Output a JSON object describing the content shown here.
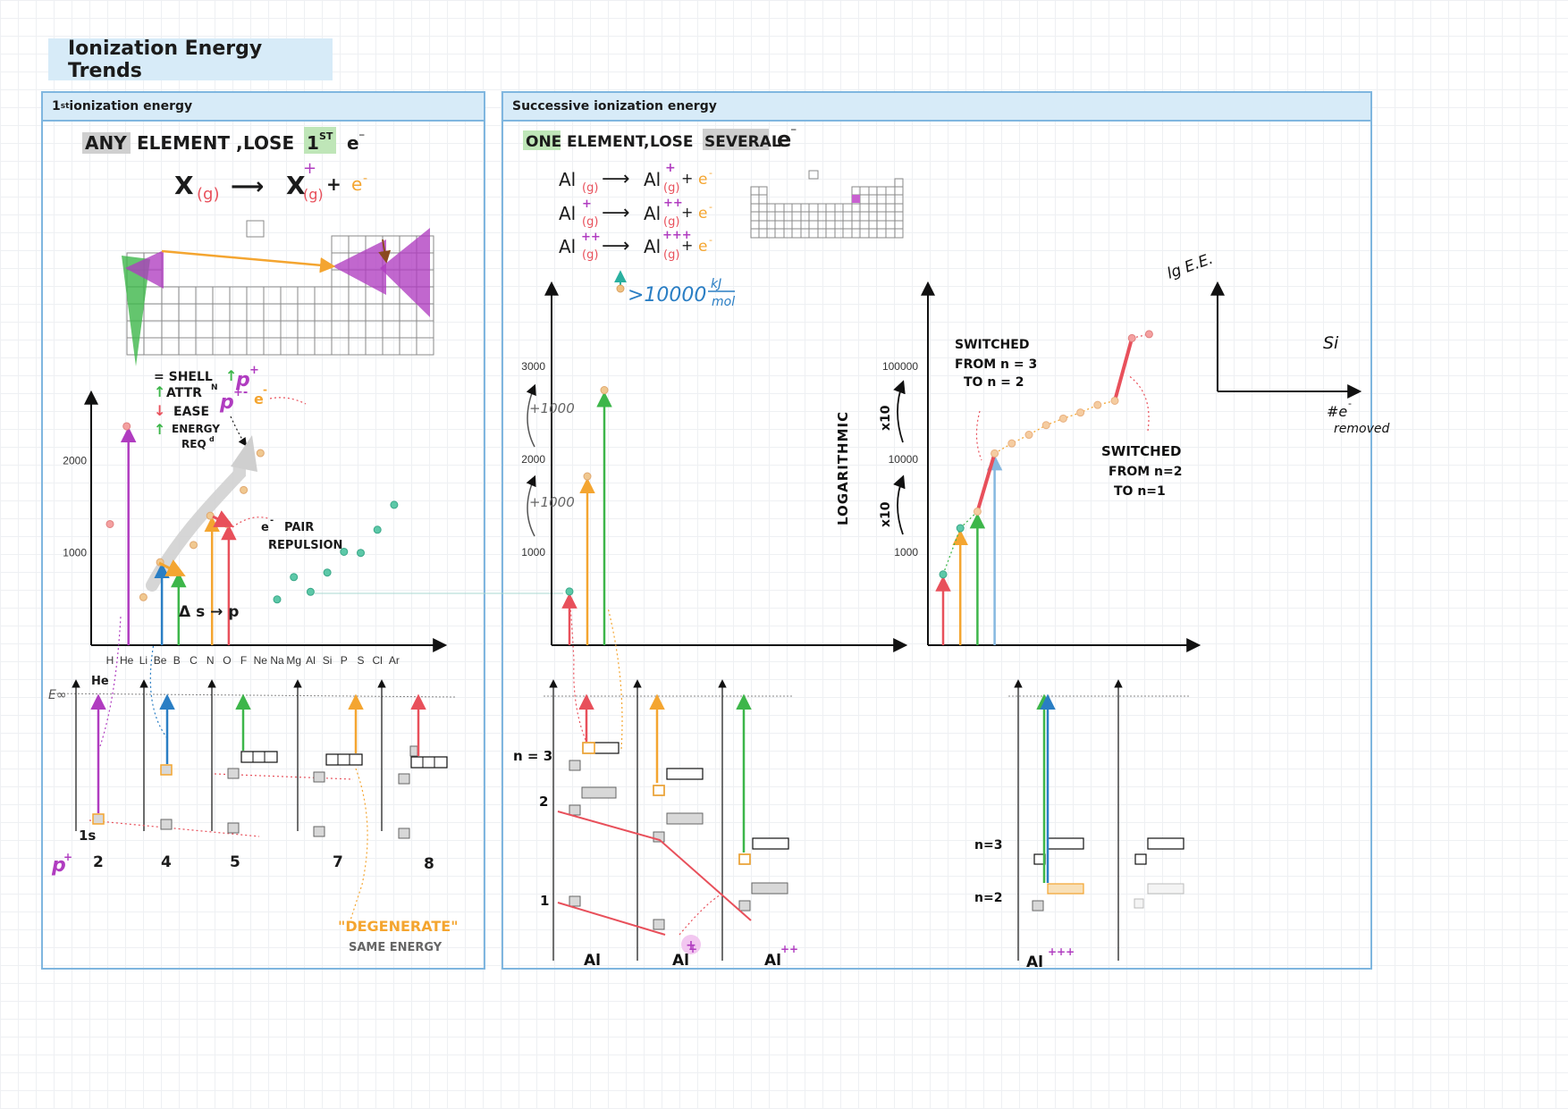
{
  "page_title": "Ionization Energy Trends",
  "panels": {
    "left": {
      "title_prefix": "1",
      "title_sup": "st",
      "title_rest": " ionization energy"
    },
    "right": {
      "title": "Successive ionization energy"
    }
  },
  "left": {
    "heading": {
      "any": "ANY",
      "element": "ELEMENT ,",
      "lose": "LOSE",
      "first": "1",
      "first_sup": "ST",
      "e": "e",
      "e_sup": "⁻"
    },
    "equation": {
      "x": "X",
      "g": "(g)",
      "arrow": "⟶",
      "x2": "X",
      "g2": "(g)",
      "plus": "+",
      "charge": "+",
      "e": "e",
      "e_sup": "-"
    },
    "legend": {
      "line1": "= SHELL",
      "line1b": "p",
      "line1c": "+",
      "line2": "ATTR",
      "line2b": "N",
      "line2c": "p",
      "line2d": "+-",
      "line2e": "e",
      "line2f": "-",
      "line3": "EASE",
      "line4": "ENERGY",
      "line5": "REQ",
      "line5b": "d"
    },
    "annotations": {
      "pair1": "e",
      "pair1_sup": "-",
      "pair2": "PAIR",
      "pair3": "REPULSION",
      "delta": "Δ s → p",
      "einf": "E∞",
      "he": "He",
      "one_s": "1s",
      "p_plus": "p",
      "p_plus_sup": "+",
      "degenerate": "\"DEGENERATE\"",
      "same_energy": "SAME ENERGY"
    },
    "proton_counts": [
      "2",
      "4",
      "5",
      "7",
      "8"
    ],
    "colors": {
      "purple": "#b03cc0",
      "green": "#3db64a",
      "orange": "#f4a530",
      "red": "#e8505b",
      "blue": "#2a7ec4",
      "teal": "#5cc8a8"
    }
  },
  "right": {
    "heading": {
      "one": "ONE",
      "element": "ELEMENT,",
      "lose": "LOSE",
      "several": "SEVERAL",
      "e": "e",
      "e_sup": "⁻"
    },
    "equations": [
      {
        "lhs": "Al",
        "lhs_charge": "",
        "rhs": "Al",
        "rhs_charge": "+",
        "e": "e",
        "e_sup": "-"
      },
      {
        "lhs": "Al",
        "lhs_charge": "+",
        "rhs": "Al",
        "rhs_charge": "++",
        "e": "e",
        "e_sup": "-"
      },
      {
        "lhs": "Al",
        "lhs_charge": "++",
        "rhs": "Al",
        "rhs_charge": "+++",
        "e": "e",
        "e_sup": "-"
      }
    ],
    "g_label": "(g)",
    "arrow": "⟶",
    "plus": "+",
    "big_value": ">10000",
    "big_unit_top": "kJ",
    "big_unit_bottom": "mol",
    "linear_annotations": {
      "plus1000a": "+1000",
      "plus1000b": "+1000"
    },
    "log_annotations": {
      "x10a": "x10",
      "x10b": "x10",
      "logarithmic": "LOGARITHMIC",
      "switched1": [
        "SWITCHED",
        "FROM n = 3",
        "TO   n = 2"
      ],
      "switched2": [
        "SWITCHED",
        "FROM  n=2",
        "TO    n=1"
      ]
    },
    "lg_axis": {
      "ylabel": "lg E.E.",
      "xlabel1": "#e",
      "xlabel1_sup": "-",
      "xlabel2": "removed",
      "si": "Si"
    },
    "shells": {
      "n3": "n = 3",
      "n2": "2",
      "n1": "1",
      "n3b": "n=3",
      "n2b": "n=2"
    },
    "species": [
      "Al",
      "Al",
      "Al",
      "Al"
    ],
    "species_charges": [
      "",
      "+",
      "++",
      "+++"
    ]
  },
  "chart_data": [
    {
      "type": "scatter",
      "title": "",
      "x": [
        "H",
        "He",
        "Li",
        "Be",
        "B",
        "C",
        "N",
        "O",
        "F",
        "Ne",
        "Na",
        "Mg",
        "Al",
        "Si",
        "P",
        "S",
        "Cl",
        "Ar"
      ],
      "y": [
        1312,
        2372,
        520,
        899,
        801,
        1086,
        1402,
        1314,
        1681,
        2081,
        496,
        738,
        578,
        787,
        1012,
        1000,
        1251,
        1521
      ],
      "yticks": [
        1000,
        2000
      ],
      "ylim": [
        0,
        2600
      ]
    },
    {
      "type": "bar",
      "title": "",
      "categories": [
        "1",
        "2",
        "3"
      ],
      "values": [
        578,
        1817,
        2745
      ],
      "yticks": [
        1000,
        2000,
        3000
      ],
      "ylim": [
        0,
        3700
      ]
    },
    {
      "type": "line",
      "title": "",
      "yscale": "log",
      "x": [
        1,
        2,
        3,
        4,
        5,
        6,
        7,
        8,
        9,
        10,
        11,
        12,
        13
      ],
      "y": [
        578,
        1817,
        2745,
        11577,
        14842,
        18379,
        23326,
        27465,
        31853,
        38473,
        42647,
        201266,
        222316
      ],
      "yticks": [
        1000,
        10000,
        100000
      ],
      "ylim": [
        300,
        500000
      ]
    }
  ]
}
